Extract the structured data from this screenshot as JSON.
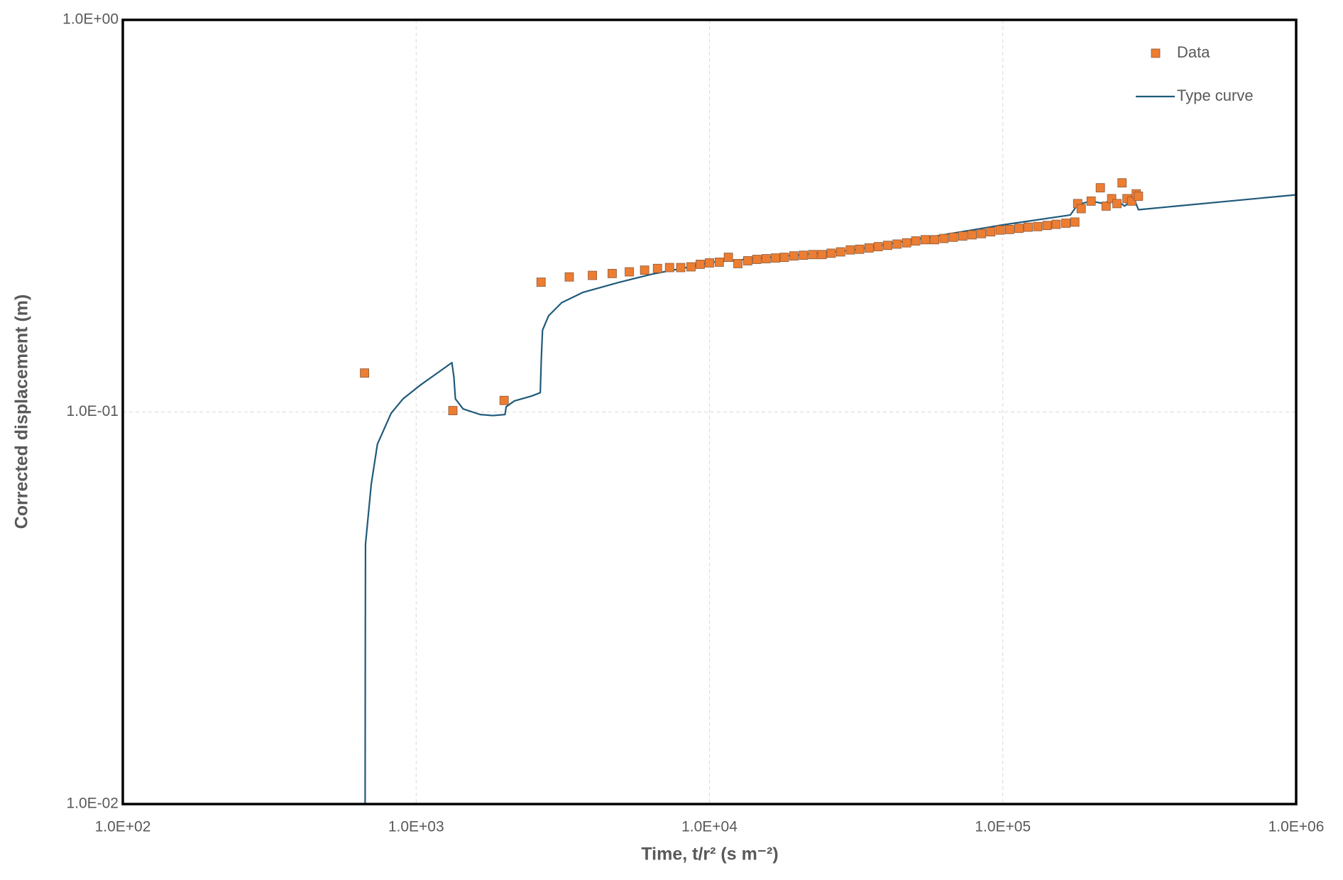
{
  "chart_data": {
    "type": "scatter",
    "xlabel": "Time, t/r² (s m⁻²)",
    "ylabel": "Corrected displacement (m)",
    "xscale": "log",
    "yscale": "log",
    "xlim": [
      100,
      1000000
    ],
    "ylim": [
      0.01,
      1
    ],
    "xticks": [
      {
        "value": 100,
        "label": "1.0E+02"
      },
      {
        "value": 1000,
        "label": "1.0E+03"
      },
      {
        "value": 10000,
        "label": "1.0E+04"
      },
      {
        "value": 100000,
        "label": "1.0E+05"
      },
      {
        "value": 1000000,
        "label": "1.0E+06"
      }
    ],
    "yticks": [
      {
        "value": 0.01,
        "label": "1.0E-02"
      },
      {
        "value": 0.1,
        "label": "1.0E-01"
      },
      {
        "value": 1,
        "label": "1.0E+00"
      }
    ],
    "grid": true,
    "legend": "top-right",
    "series": [
      {
        "name": "Data",
        "type": "scatter",
        "color": "#ED7D31",
        "x": [
          667,
          1334,
          1995,
          2666,
          3327,
          3990,
          4660,
          5330,
          6010,
          6650,
          7310,
          7980,
          8650,
          9300,
          10000,
          10800,
          11600,
          12500,
          13500,
          14500,
          15600,
          16800,
          18000,
          19400,
          20900,
          22500,
          24200,
          26000,
          28000,
          30200,
          32500,
          35000,
          37600,
          40500,
          43600,
          47000,
          50500,
          54400,
          58500,
          63000,
          67800,
          73000,
          78600,
          84600,
          91000,
          98000,
          105500,
          113500,
          122000,
          131500,
          141500,
          152000,
          164000,
          176000,
          180000,
          185000,
          200000,
          215000,
          225000,
          235000,
          245000,
          255000,
          265000,
          275000,
          285000,
          290000
        ],
        "values": [
          0.1257,
          0.1008,
          0.107,
          0.2143,
          0.221,
          0.223,
          0.2255,
          0.2277,
          0.23,
          0.2323,
          0.2335,
          0.2335,
          0.2345,
          0.238,
          0.24,
          0.241,
          0.248,
          0.239,
          0.243,
          0.245,
          0.246,
          0.247,
          0.248,
          0.25,
          0.251,
          0.252,
          0.252,
          0.254,
          0.256,
          0.259,
          0.26,
          0.262,
          0.264,
          0.266,
          0.268,
          0.27,
          0.273,
          0.275,
          0.275,
          0.277,
          0.279,
          0.281,
          0.283,
          0.285,
          0.288,
          0.291,
          0.292,
          0.294,
          0.296,
          0.297,
          0.299,
          0.301,
          0.303,
          0.305,
          0.34,
          0.33,
          0.345,
          0.373,
          0.335,
          0.35,
          0.34,
          0.384,
          0.35,
          0.345,
          0.36,
          0.355
        ]
      },
      {
        "name": "Type curve",
        "type": "line",
        "color": "#1F5A7A",
        "x": [
          670,
          671,
          672,
          703,
          738,
          822,
          902,
          1032,
          1181,
          1324,
          1345,
          1361,
          1446,
          1653,
          1828,
          2009,
          2027,
          2163,
          2476,
          2650,
          2670,
          2697,
          2830,
          3134,
          3708,
          4857,
          6350,
          8318,
          10000,
          30000,
          100000,
          170000,
          180000,
          200000,
          220000,
          240000,
          260000,
          280000,
          290000,
          1000000
        ],
        "values": [
          0.01,
          0.0245,
          0.046,
          0.0654,
          0.0828,
          0.0993,
          0.108,
          0.117,
          0.1257,
          0.1336,
          0.1228,
          0.108,
          0.1018,
          0.0985,
          0.0979,
          0.0985,
          0.1031,
          0.1067,
          0.1098,
          0.112,
          0.1356,
          0.1617,
          0.176,
          0.19,
          0.2019,
          0.2136,
          0.2245,
          0.2335,
          0.2406,
          0.258,
          0.3,
          0.318,
          0.338,
          0.345,
          0.34,
          0.35,
          0.335,
          0.35,
          0.328,
          0.358
        ]
      }
    ]
  }
}
